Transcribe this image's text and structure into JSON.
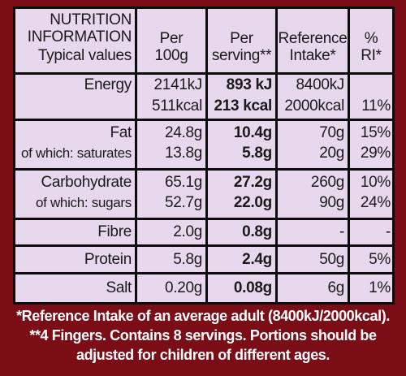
{
  "header": {
    "col1": [
      "NUTRITION",
      "INFORMATION",
      "Typical values"
    ],
    "col2": [
      "Per",
      "100g"
    ],
    "col3": [
      "Per",
      "serving**"
    ],
    "col4": [
      "Reference",
      "Intake*"
    ],
    "col5": [
      "%",
      "RI*"
    ]
  },
  "rows": [
    {
      "label": "Energy",
      "per100": "2141kJ",
      "serving": "893 kJ",
      "ri": "8400kJ",
      "pct": ""
    },
    {
      "label": "",
      "per100": "511kcal",
      "serving": "213 kcal",
      "ri": "2000kcal",
      "pct": "11%"
    },
    {
      "label": "Fat",
      "per100": "24.8g",
      "serving": "10.4g",
      "ri": "70g",
      "pct": "15%"
    },
    {
      "label": "of which: saturates",
      "per100": "13.8g",
      "serving": "5.8g",
      "ri": "20g",
      "pct": "29%"
    },
    {
      "label": "Carbohydrate",
      "per100": "65.1g",
      "serving": "27.2g",
      "ri": "260g",
      "pct": "10%"
    },
    {
      "label": "of which: sugars",
      "per100": "52.7g",
      "serving": "22.0g",
      "ri": "90g",
      "pct": "24%"
    },
    {
      "label": "Fibre",
      "per100": "2.0g",
      "serving": "0.8g",
      "ri": "-",
      "pct": "-"
    },
    {
      "label": "Protein",
      "per100": "5.8g",
      "serving": "2.4g",
      "ri": "50g",
      "pct": "5%"
    },
    {
      "label": "Salt",
      "per100": "0.20g",
      "serving": "0.08g",
      "ri": "6g",
      "pct": "1%"
    }
  ],
  "footnotes": [
    "*Reference Intake of an average adult (8400kJ/2000kcal).",
    "**4 Fingers. Contains 8 servings. Portions should be",
    "adjusted for children of different ages."
  ]
}
